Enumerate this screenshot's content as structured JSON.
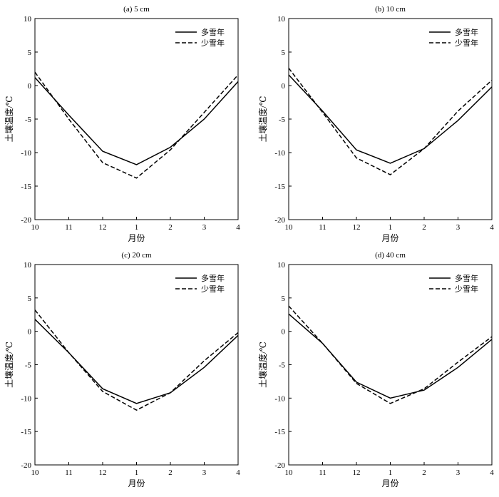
{
  "chart_data": [
    {
      "type": "line",
      "title": "(a) 5 cm",
      "xlabel": "月份",
      "ylabel": "土壤温度/℃",
      "categories": [
        "10",
        "11",
        "12",
        "1",
        "2",
        "3",
        "4"
      ],
      "ylim": [
        -20,
        10
      ],
      "yticks": [
        10,
        5,
        0,
        -5,
        -10,
        -15,
        -20
      ],
      "legend_position": "top-right",
      "grid": false,
      "series": [
        {
          "name": "多雪年",
          "style": "solid",
          "color": "#000000",
          "values": [
            1.2,
            -4.4,
            -9.8,
            -11.8,
            -9.2,
            -5.0,
            0.6
          ]
        },
        {
          "name": "少雪年",
          "style": "dashed",
          "color": "#000000",
          "values": [
            2.0,
            -5.0,
            -11.5,
            -13.8,
            -9.6,
            -4.0,
            1.6
          ]
        }
      ]
    },
    {
      "type": "line",
      "title": "(b) 10 cm",
      "xlabel": "月份",
      "ylabel": "土壤温度/℃",
      "categories": [
        "10",
        "11",
        "12",
        "1",
        "2",
        "3",
        "4"
      ],
      "ylim": [
        -20,
        10
      ],
      "yticks": [
        10,
        5,
        0,
        -5,
        -10,
        -15,
        -20
      ],
      "legend_position": "top-right",
      "grid": false,
      "series": [
        {
          "name": "多雪年",
          "style": "solid",
          "color": "#000000",
          "values": [
            1.6,
            -3.8,
            -9.6,
            -11.6,
            -9.4,
            -5.2,
            -0.2
          ]
        },
        {
          "name": "少雪年",
          "style": "dashed",
          "color": "#000000",
          "values": [
            2.6,
            -4.0,
            -10.8,
            -13.3,
            -9.4,
            -3.8,
            0.8
          ]
        }
      ]
    },
    {
      "type": "line",
      "title": "(c) 20 cm",
      "xlabel": "月份",
      "ylabel": "土壤温度/℃",
      "categories": [
        "10",
        "11",
        "12",
        "1",
        "2",
        "3",
        "4"
      ],
      "ylim": [
        -20,
        10
      ],
      "yticks": [
        10,
        5,
        0,
        -5,
        -10,
        -15,
        -20
      ],
      "legend_position": "top-right",
      "grid": false,
      "series": [
        {
          "name": "多雪年",
          "style": "solid",
          "color": "#000000",
          "values": [
            1.8,
            -3.2,
            -8.6,
            -10.8,
            -9.2,
            -5.4,
            -0.6
          ]
        },
        {
          "name": "少雪年",
          "style": "dashed",
          "color": "#000000",
          "values": [
            3.2,
            -3.2,
            -9.0,
            -11.8,
            -9.2,
            -4.4,
            -0.2
          ]
        }
      ]
    },
    {
      "type": "line",
      "title": "(d) 40 cm",
      "xlabel": "月份",
      "ylabel": "土壤温度/℃",
      "categories": [
        "10",
        "11",
        "12",
        "1",
        "2",
        "3",
        "4"
      ],
      "ylim": [
        -20,
        10
      ],
      "yticks": [
        10,
        5,
        0,
        -5,
        -10,
        -15,
        -20
      ],
      "legend_position": "top-right",
      "grid": false,
      "series": [
        {
          "name": "多雪年",
          "style": "solid",
          "color": "#000000",
          "values": [
            2.6,
            -1.8,
            -7.6,
            -10.0,
            -8.8,
            -5.4,
            -1.2
          ]
        },
        {
          "name": "少雪年",
          "style": "dashed",
          "color": "#000000",
          "values": [
            3.8,
            -1.8,
            -7.8,
            -10.8,
            -8.6,
            -4.6,
            -0.8
          ]
        }
      ]
    }
  ]
}
